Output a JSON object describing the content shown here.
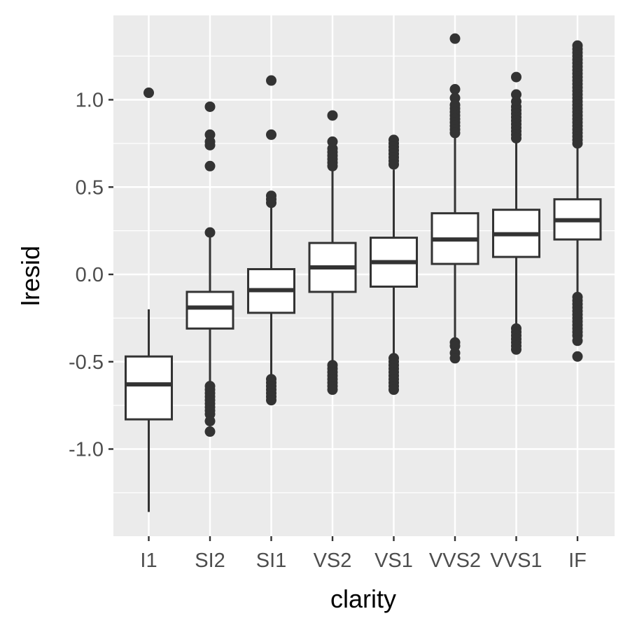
{
  "chart_data": {
    "type": "boxplot",
    "xlabel": "clarity",
    "ylabel": "lresid",
    "ylim": [
      -1.5,
      1.5
    ],
    "yticks": [
      -1.0,
      -0.5,
      0.0,
      0.5,
      1.0
    ],
    "ytick_labels": [
      "-1.0",
      "-0.5",
      "0.0",
      "0.5",
      "1.0"
    ],
    "grid": true,
    "colors": {
      "panel": "#ebebeb",
      "grid": "#ffffff",
      "box_fill": "#ffffff",
      "stroke": "#333333"
    },
    "categories": [
      "I1",
      "SI2",
      "SI1",
      "VS2",
      "VS1",
      "VVS2",
      "VVS1",
      "IF"
    ],
    "boxes": [
      {
        "category": "I1",
        "q1": -0.83,
        "median": -0.63,
        "q3": -0.47,
        "whisker_low": -1.36,
        "whisker_high": -0.2,
        "outliers": [
          1.04
        ]
      },
      {
        "category": "SI2",
        "q1": -0.31,
        "median": -0.19,
        "q3": -0.1,
        "whisker_low": -0.63,
        "whisker_high": 0.22,
        "outliers": [
          0.96,
          0.8,
          0.76,
          0.74,
          0.62,
          0.24,
          -0.64,
          -0.66,
          -0.68,
          -0.7,
          -0.72,
          -0.74,
          -0.76,
          -0.78,
          -0.8,
          -0.84,
          -0.9
        ]
      },
      {
        "category": "SI1",
        "q1": -0.22,
        "median": -0.09,
        "q3": 0.03,
        "whisker_low": -0.58,
        "whisker_high": 0.4,
        "outliers": [
          1.11,
          0.8,
          0.45,
          0.43,
          0.41,
          -0.6,
          -0.62,
          -0.64,
          -0.66,
          -0.68,
          -0.7,
          -0.72
        ]
      },
      {
        "category": "VS2",
        "q1": -0.1,
        "median": 0.04,
        "q3": 0.18,
        "whisker_low": -0.51,
        "whisker_high": 0.6,
        "outliers": [
          0.91,
          0.76,
          0.72,
          0.7,
          0.68,
          0.66,
          0.64,
          0.62,
          -0.52,
          -0.54,
          -0.56,
          -0.58,
          -0.6,
          -0.62,
          -0.64,
          -0.66
        ]
      },
      {
        "category": "VS1",
        "q1": -0.07,
        "median": 0.07,
        "q3": 0.21,
        "whisker_low": -0.47,
        "whisker_high": 0.6,
        "outliers": [
          0.77,
          0.75,
          0.73,
          0.71,
          0.69,
          0.67,
          0.65,
          0.63,
          -0.48,
          -0.5,
          -0.52,
          -0.54,
          -0.56,
          -0.58,
          -0.6,
          -0.62,
          -0.64,
          -0.66
        ]
      },
      {
        "category": "VVS2",
        "q1": 0.06,
        "median": 0.2,
        "q3": 0.35,
        "whisker_low": -0.37,
        "whisker_high": 0.79,
        "outliers": [
          1.35,
          1.06,
          1.01,
          0.97,
          0.95,
          0.93,
          0.91,
          0.89,
          0.87,
          0.85,
          0.83,
          0.81,
          -0.39,
          -0.41,
          -0.45,
          -0.48
        ]
      },
      {
        "category": "VVS1",
        "q1": 0.1,
        "median": 0.23,
        "q3": 0.37,
        "whisker_low": -0.3,
        "whisker_high": 0.77,
        "outliers": [
          1.13,
          1.03,
          0.99,
          0.96,
          0.94,
          0.92,
          0.9,
          0.88,
          0.86,
          0.84,
          0.82,
          0.8,
          0.78,
          -0.31,
          -0.33,
          -0.35,
          -0.37,
          -0.39,
          -0.41,
          -0.43
        ]
      },
      {
        "category": "IF",
        "q1": 0.2,
        "median": 0.31,
        "q3": 0.43,
        "whisker_low": -0.1,
        "whisker_high": 0.73,
        "outliers": [
          1.31,
          1.29,
          1.27,
          1.25,
          1.23,
          1.21,
          1.19,
          1.17,
          1.15,
          1.13,
          1.11,
          1.09,
          1.07,
          1.05,
          1.03,
          1.01,
          0.99,
          0.97,
          0.95,
          0.93,
          0.91,
          0.89,
          0.87,
          0.85,
          0.83,
          0.81,
          0.79,
          0.77,
          0.75,
          -0.13,
          -0.15,
          -0.17,
          -0.19,
          -0.21,
          -0.23,
          -0.25,
          -0.27,
          -0.29,
          -0.31,
          -0.33,
          -0.35,
          -0.38,
          -0.47
        ]
      }
    ]
  }
}
